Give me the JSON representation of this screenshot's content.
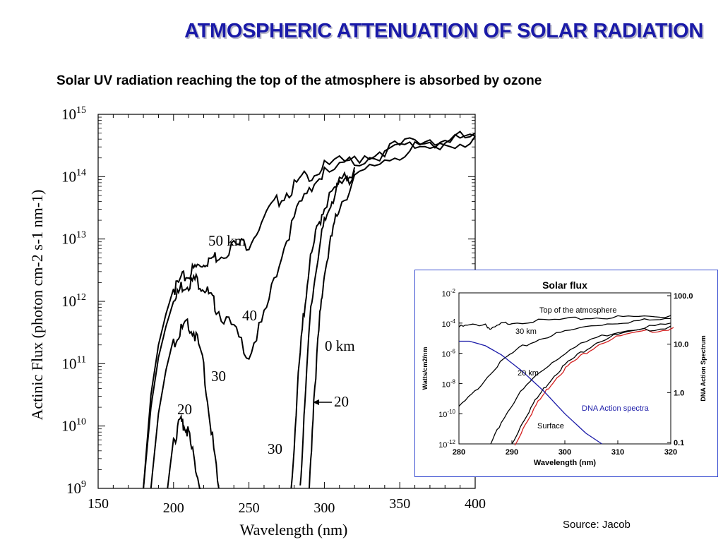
{
  "title": "ATMOSPHERIC ATTENUATION OF SOLAR RADIATION",
  "subtitle": "Solar UV radiation reaching the top of the atmosphere is absorbed by ozone",
  "source": "Source: Jacob",
  "chart_data": [
    {
      "type": "line",
      "title": "",
      "xlabel": "Wavelength (nm)",
      "ylabel": "Actinic Flux (photon cm-2 s-1 nm-1)",
      "xlim": [
        150,
        400
      ],
      "ylim_log10": [
        9,
        15
      ],
      "y_scale": "log",
      "x_ticks": [
        "150",
        "200",
        "250",
        "300",
        "350",
        "400"
      ],
      "y_ticks": [
        "10^9",
        "10^10",
        "10^11",
        "10^12",
        "10^13",
        "10^14",
        "10^15"
      ],
      "labels": [
        "50 km",
        "40",
        "30",
        "20",
        "0 km",
        "20",
        "30"
      ],
      "series": [
        {
          "name": "50 km",
          "x": [
            180,
            185,
            190,
            195,
            200,
            205,
            210,
            215,
            220,
            225,
            230,
            240,
            250,
            260,
            270,
            280,
            290,
            300,
            320,
            340,
            360,
            380,
            400
          ],
          "log10y": [
            9.0,
            10.5,
            11.3,
            11.8,
            12.2,
            12.4,
            12.5,
            12.6,
            12.7,
            12.75,
            12.8,
            12.95,
            13.0,
            13.4,
            13.7,
            13.9,
            14.1,
            14.2,
            14.35,
            14.5,
            14.6,
            14.65,
            14.7
          ]
        },
        {
          "name": "40",
          "x": [
            180,
            185,
            190,
            195,
            200,
            205,
            210,
            215,
            220,
            225,
            230,
            240,
            250,
            260,
            270,
            280,
            290,
            300,
            320,
            340,
            360,
            380,
            400
          ],
          "log10y": [
            9.0,
            10.3,
            11.1,
            11.6,
            12.0,
            12.3,
            12.35,
            12.4,
            12.3,
            12.1,
            11.9,
            11.6,
            11.2,
            11.8,
            12.7,
            13.4,
            13.9,
            14.1,
            14.3,
            14.45,
            14.55,
            14.6,
            14.65
          ]
        },
        {
          "name": "30",
          "x": [
            185,
            190,
            195,
            200,
            205,
            210,
            215,
            220,
            225,
            230
          ],
          "log10y": [
            9.0,
            10.2,
            10.9,
            11.4,
            11.6,
            11.7,
            11.5,
            11.0,
            10.0,
            9.0
          ]
        },
        {
          "name": "20",
          "x": [
            196,
            200,
            204,
            207,
            210,
            214,
            218
          ],
          "log10y": [
            9.0,
            9.8,
            10.1,
            10.1,
            9.9,
            9.5,
            9.0
          ]
        },
        {
          "name": "0 km",
          "x": [
            290,
            293,
            297,
            300,
            305,
            310,
            320,
            340,
            360,
            380,
            400
          ],
          "log10y": [
            9.0,
            10.5,
            11.8,
            12.5,
            13.1,
            13.6,
            14.0,
            14.35,
            14.5,
            14.6,
            14.65
          ]
        },
        {
          "name": "20 (right)",
          "x": [
            284,
            287,
            291,
            295,
            300,
            305,
            310,
            320
          ],
          "log10y": [
            9.0,
            10.5,
            11.9,
            12.7,
            13.3,
            13.7,
            13.9,
            14.1
          ]
        },
        {
          "name": "30 (right)",
          "x": [
            278,
            282,
            286,
            290,
            295,
            300,
            310,
            320
          ],
          "log10y": [
            9.0,
            10.6,
            11.8,
            12.6,
            13.2,
            13.6,
            13.95,
            14.15
          ]
        }
      ]
    },
    {
      "type": "line",
      "title": "Solar flux",
      "xlabel": "Wavelength (nm)",
      "ylabel": "Watts/cm2/nm",
      "ylabel_right": "DNA Action Spectrum",
      "xlim": [
        280,
        320
      ],
      "ylim_log10": [
        -12,
        -2
      ],
      "x_ticks": [
        "280",
        "290",
        "300",
        "310",
        "320"
      ],
      "y_ticks": [
        "10^-2",
        "10^-4",
        "10^-6",
        "10^-8",
        "10^-10",
        "10^-12"
      ],
      "y_ticks_right": [
        "100.0",
        "10.0",
        "1.0",
        "0.1"
      ],
      "labels": [
        "Top of the atmosphere",
        "30 km",
        "20 km",
        "DNA Action spectra",
        "Surface"
      ],
      "series": [
        {
          "name": "Top of the atmosphere",
          "x": [
            280,
            282,
            285,
            286,
            288,
            290,
            295,
            300,
            305,
            310,
            315,
            320
          ],
          "log10y": [
            -4.2,
            -4.1,
            -4.0,
            -4.4,
            -4.0,
            -3.9,
            -3.8,
            -3.7,
            -3.6,
            -3.55,
            -3.5,
            -3.5
          ]
        },
        {
          "name": "30 km",
          "x": [
            280,
            283,
            286,
            289,
            292,
            296,
            300,
            305,
            310,
            315,
            320
          ],
          "log10y": [
            -9.5,
            -8.5,
            -7.2,
            -6.2,
            -5.5,
            -4.9,
            -4.5,
            -4.1,
            -3.9,
            -3.75,
            -3.7
          ]
        },
        {
          "name": "20 km",
          "x": [
            286,
            288,
            291,
            294,
            297,
            300,
            305,
            310,
            315,
            320
          ],
          "log10y": [
            -12.0,
            -10.5,
            -8.8,
            -7.6,
            -6.7,
            -5.9,
            -5.0,
            -4.5,
            -4.2,
            -4.0
          ]
        },
        {
          "name": "Surface",
          "x": [
            290,
            292,
            294,
            296,
            298,
            300,
            303,
            306,
            310,
            315,
            320
          ],
          "log10y": [
            -12.0,
            -10.5,
            -9.3,
            -8.3,
            -7.4,
            -6.7,
            -5.9,
            -5.2,
            -4.7,
            -4.4,
            -4.2
          ]
        },
        {
          "name": "DNA Action spectra",
          "x": [
            280,
            282,
            285,
            288,
            292,
            296,
            300,
            304,
            307
          ],
          "log10y": [
            -5.2,
            -5.2,
            -5.5,
            -6.1,
            -7.2,
            -8.5,
            -10.0,
            -11.3,
            -12.0
          ]
        }
      ]
    }
  ],
  "colors": {
    "title": "#1a1aa8",
    "inset_border": "#3b4fd1",
    "dna": "#1a1aa8",
    "surface_red": "#d42020"
  }
}
